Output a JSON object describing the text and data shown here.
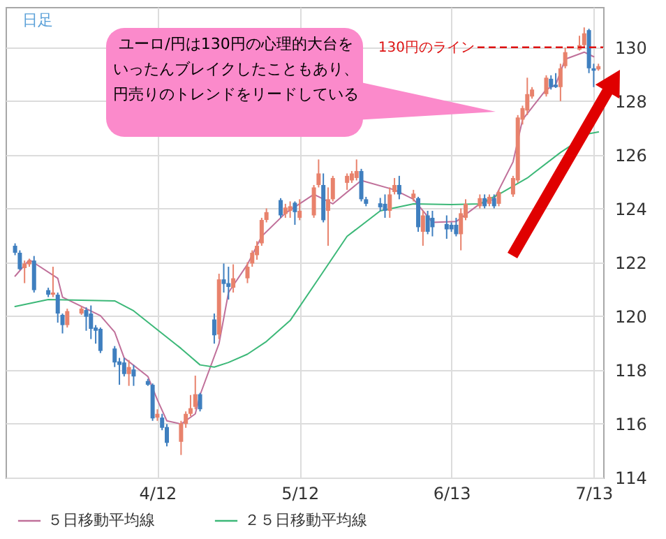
{
  "chart_data": {
    "type": "candlestick",
    "annotations": [
      "日足",
      "ユーロ/円は130円の心理的大台をいったんブレイクしたこともあり、円売りのトレンドをリードしている"
    ],
    "x": [
      "--03-13",
      "--03-14",
      "--03-15",
      "--03-16",
      "--03-17",
      "--03-20",
      "--03-21",
      "--03-22",
      "--03-23",
      "--03-24",
      "--03-27",
      "--03-28",
      "--03-29",
      "--03-30",
      "--03-31",
      "--04-03",
      "--04-04",
      "--04-05",
      "--04-06",
      "--04-07",
      "--04-10",
      "--04-11",
      "--04-12",
      "--04-13",
      "--04-14",
      "--04-17",
      "--04-18",
      "--04-19",
      "--04-20",
      "--04-21",
      "--04-24",
      "--04-25",
      "--04-26",
      "--04-27",
      "--04-28",
      "--05-01",
      "--05-02",
      "--05-03",
      "--05-04",
      "--05-05",
      "--05-08",
      "--05-09",
      "--05-10",
      "--05-11",
      "--05-12",
      "--05-15",
      "--05-16",
      "--05-17",
      "--05-18",
      "--05-19",
      "--05-22",
      "--05-23",
      "--05-24",
      "--05-25",
      "--05-26",
      "--05-29",
      "--05-30",
      "--05-31",
      "--06-01",
      "--06-02",
      "--06-05",
      "--06-06",
      "--06-07",
      "--06-08",
      "--06-09",
      "--06-12",
      "--06-13",
      "--06-14",
      "--06-15",
      "--06-16",
      "--06-19",
      "--06-20",
      "--06-21",
      "--06-22",
      "--06-23",
      "--06-26",
      "--06-27",
      "--06-28",
      "--06-29",
      "--06-30",
      "--07-03",
      "--07-04",
      "--07-05",
      "--07-06",
      "--07-07",
      "--07-10",
      "--07-11",
      "--07-12",
      "--07-13",
      "--07-14"
    ],
    "ohlc": [
      [
        122.62,
        122.71,
        122.27,
        122.36
      ],
      [
        122.36,
        122.45,
        121.72,
        121.75
      ],
      [
        121.79,
        122.07,
        121.23,
        121.96
      ],
      [
        121.93,
        122.14,
        121.84,
        122.07
      ],
      [
        122.07,
        122.24,
        120.88,
        120.97
      ],
      [
        120.97,
        121.06,
        120.71,
        120.8
      ],
      [
        120.8,
        121.84,
        120.71,
        120.88
      ],
      [
        120.8,
        120.88,
        119.76,
        120.1
      ],
      [
        120.05,
        120.1,
        119.36,
        119.67
      ],
      [
        119.67,
        120.28,
        119.58,
        120.19
      ],
      [
        120.1,
        120.36,
        120.05,
        120.28
      ],
      [
        120.23,
        120.33,
        119.46,
        119.98
      ],
      [
        120.1,
        120.4,
        119.15,
        119.53
      ],
      [
        119.58,
        119.67,
        118.98,
        119.46
      ],
      [
        119.53,
        119.58,
        118.63,
        118.71
      ],
      [
        118.8,
        118.89,
        118.11,
        118.28
      ],
      [
        118.32,
        118.45,
        117.45,
        118.19
      ],
      [
        118.28,
        118.45,
        117.76,
        117.85
      ],
      [
        117.85,
        118.37,
        117.41,
        118.11
      ],
      [
        118.02,
        118.19,
        117.41,
        117.76
      ],
      [
        117.59,
        117.67,
        117.41,
        117.45
      ],
      [
        117.45,
        117.5,
        116.11,
        116.2
      ],
      [
        116.23,
        116.54,
        116.11,
        116.37
      ],
      [
        116.23,
        116.37,
        115.76,
        115.85
      ],
      [
        115.88,
        115.99,
        115.16,
        115.29
      ],
      [
        115.33,
        116.11,
        114.84,
        116.02
      ],
      [
        115.99,
        116.46,
        115.85,
        116.37
      ],
      [
        116.37,
        117.07,
        116.28,
        116.58
      ],
      [
        116.63,
        117.79,
        116.54,
        117.1
      ],
      [
        117.1,
        117.15,
        116.46,
        116.54
      ],
      [
        119.88,
        120.1,
        118.98,
        119.29
      ],
      [
        119.32,
        121.58,
        119.15,
        121.37
      ],
      [
        121.37,
        121.96,
        120.88,
        121.2
      ],
      [
        121.23,
        121.84,
        120.62,
        121.09
      ],
      [
        121.06,
        121.93,
        120.88,
        121.41
      ],
      [
        121.41,
        122.01,
        121.23,
        121.84
      ],
      [
        121.96,
        122.45,
        121.84,
        122.36
      ],
      [
        122.27,
        122.79,
        122.1,
        122.62
      ],
      [
        122.71,
        123.66,
        122.62,
        123.58
      ],
      [
        123.58,
        124.01,
        123.49,
        123.87
      ],
      [
        124.32,
        124.39,
        123.66,
        123.75
      ],
      [
        123.8,
        124.18,
        123.66,
        124.04
      ],
      [
        123.92,
        124.27,
        123.66,
        124.09
      ],
      [
        124.22,
        124.27,
        123.4,
        123.87
      ],
      [
        123.66,
        124.35,
        123.57,
        123.92
      ],
      [
        123.75,
        124.88,
        123.66,
        124.79
      ],
      [
        124.88,
        125.83,
        124.79,
        125.31
      ],
      [
        124.88,
        125.31,
        123.49,
        123.57
      ],
      [
        123.92,
        124.79,
        122.62,
        124.35
      ],
      [
        124.35,
        125.22,
        124.27,
        125.14
      ],
      [
        124.96,
        125.31,
        124.7,
        125.22
      ],
      [
        125.05,
        125.4,
        124.96,
        125.31
      ],
      [
        125.14,
        125.83,
        125.05,
        125.4
      ],
      [
        125.4,
        125.48,
        124.27,
        124.35
      ],
      [
        124.35,
        124.44,
        124.09,
        124.18
      ],
      [
        124.2,
        124.4,
        123.9,
        124.05
      ],
      [
        124.18,
        124.53,
        123.66,
        123.92
      ],
      [
        123.92,
        124.79,
        123.66,
        124.53
      ],
      [
        124.62,
        125.14,
        124.53,
        124.88
      ],
      [
        124.88,
        125.22,
        124.35,
        124.53
      ],
      [
        124.39,
        124.7,
        124.27,
        124.56
      ],
      [
        124.39,
        124.44,
        123.14,
        123.31
      ],
      [
        123.14,
        123.92,
        122.62,
        123.75
      ],
      [
        123.75,
        123.92,
        123.05,
        123.14
      ],
      [
        123.66,
        123.92,
        122.97,
        123.31
      ],
      [
        123.43,
        123.75,
        122.88,
        123.23
      ],
      [
        123.4,
        123.49,
        123.14,
        123.23
      ],
      [
        123.4,
        123.66,
        122.97,
        123.05
      ],
      [
        123.05,
        124.01,
        122.45,
        123.83
      ],
      [
        123.66,
        124.35,
        123.57,
        124.18
      ],
      [
        124.09,
        124.53,
        124.01,
        124.39
      ],
      [
        124.39,
        124.53,
        124.01,
        124.09
      ],
      [
        124.18,
        124.53,
        124.09,
        124.44
      ],
      [
        124.39,
        124.53,
        124.01,
        124.09
      ],
      [
        124.18,
        124.7,
        124.09,
        124.62
      ],
      [
        124.53,
        125.22,
        124.44,
        125.14
      ],
      [
        125.05,
        127.48,
        124.96,
        127.39
      ],
      [
        127.31,
        127.83,
        127.13,
        127.74
      ],
      [
        127.65,
        128.87,
        127.48,
        128.26
      ],
      [
        128.17,
        128.52,
        128.09,
        128.43
      ],
      [
        128.26,
        128.96,
        128.17,
        128.87
      ],
      [
        128.83,
        128.96,
        128.43,
        128.52
      ],
      [
        128.61,
        129.04,
        128.49,
        128.52
      ],
      [
        128.52,
        129.39,
        128.0,
        129.22
      ],
      [
        129.3,
        129.99,
        129.22,
        129.82
      ],
      [
        129.91,
        130.43,
        129.88,
        130.08
      ],
      [
        130.08,
        130.74,
        129.99,
        130.52
      ],
      [
        130.64,
        130.69,
        129.04,
        129.22
      ],
      [
        129.22,
        129.39,
        128.52,
        129.13
      ],
      [
        129.18,
        129.39,
        129.13,
        129.3
      ]
    ],
    "series": [
      {
        "name": "５日移動平均線",
        "type": "line",
        "color": "#c0709a",
        "x": [
          "--03-13",
          "--03-16",
          "--03-22",
          "--03-23",
          "--03-28",
          "--03-31",
          "--04-03",
          "--04-05",
          "--04-10",
          "--04-12",
          "--04-14",
          "--04-17",
          "--04-20",
          "--04-21",
          "--04-25",
          "--04-27",
          "--05-01",
          "--05-04",
          "--05-09",
          "--05-15",
          "--05-19",
          "--05-25",
          "--06-01",
          "--06-05",
          "--06-09",
          "--06-14",
          "--06-19",
          "--06-22",
          "--06-26",
          "--06-28",
          "--07-03",
          "--07-05",
          "--07-07",
          "--07-11",
          "--07-13"
        ],
        "values": [
          121.49,
          122.1,
          121.41,
          120.71,
          120.28,
          120.02,
          119.41,
          118.45,
          117.76,
          116.89,
          116.11,
          115.99,
          116.37,
          117.07,
          118.98,
          120.88,
          121.93,
          122.97,
          123.83,
          124.53,
          124.18,
          125.05,
          124.7,
          124.35,
          123.49,
          123.52,
          124.18,
          124.35,
          125.74,
          127.31,
          128.43,
          128.61,
          129.56,
          129.82,
          129.65
        ]
      },
      {
        "name": "２５日移動平均線",
        "type": "line",
        "color": "#3cb878",
        "x": [
          "--03-13",
          "--03-20",
          "--04-03",
          "--04-07",
          "--04-12",
          "--04-17",
          "--04-21",
          "--04-24",
          "--04-27",
          "--05-01",
          "--05-05",
          "--05-10",
          "--05-16",
          "--05-22",
          "--05-29",
          "--06-05",
          "--06-13",
          "--06-19",
          "--06-23",
          "--06-29",
          "--07-06",
          "--07-12",
          "--07-14"
        ],
        "values": [
          120.36,
          120.62,
          120.57,
          120.2,
          119.5,
          118.8,
          118.19,
          118.11,
          118.28,
          118.59,
          119.06,
          119.84,
          121.4,
          122.97,
          123.92,
          124.18,
          124.15,
          124.18,
          124.53,
          125.14,
          126.09,
          126.79,
          126.85
        ]
      }
    ],
    "xlim": [
      "--03-11",
      "--07-15"
    ],
    "xticks": [
      {
        "value": "--04-12",
        "label": "4/12"
      },
      {
        "value": "--05-12",
        "label": "5/12"
      },
      {
        "value": "--06-13",
        "label": "6/13"
      },
      {
        "value": "--07-13",
        "label": "7/13"
      }
    ],
    "ylim": [
      114,
      131.5
    ],
    "yticks": [
      114,
      116,
      118,
      120,
      122,
      124,
      126,
      128,
      130
    ],
    "ref_lines": [
      {
        "axis": "y",
        "value": 130,
        "label": "130円のライン",
        "color": "#dd1111",
        "line_style": "dashed"
      }
    ],
    "grid": true,
    "legend": "bottom left"
  }
}
